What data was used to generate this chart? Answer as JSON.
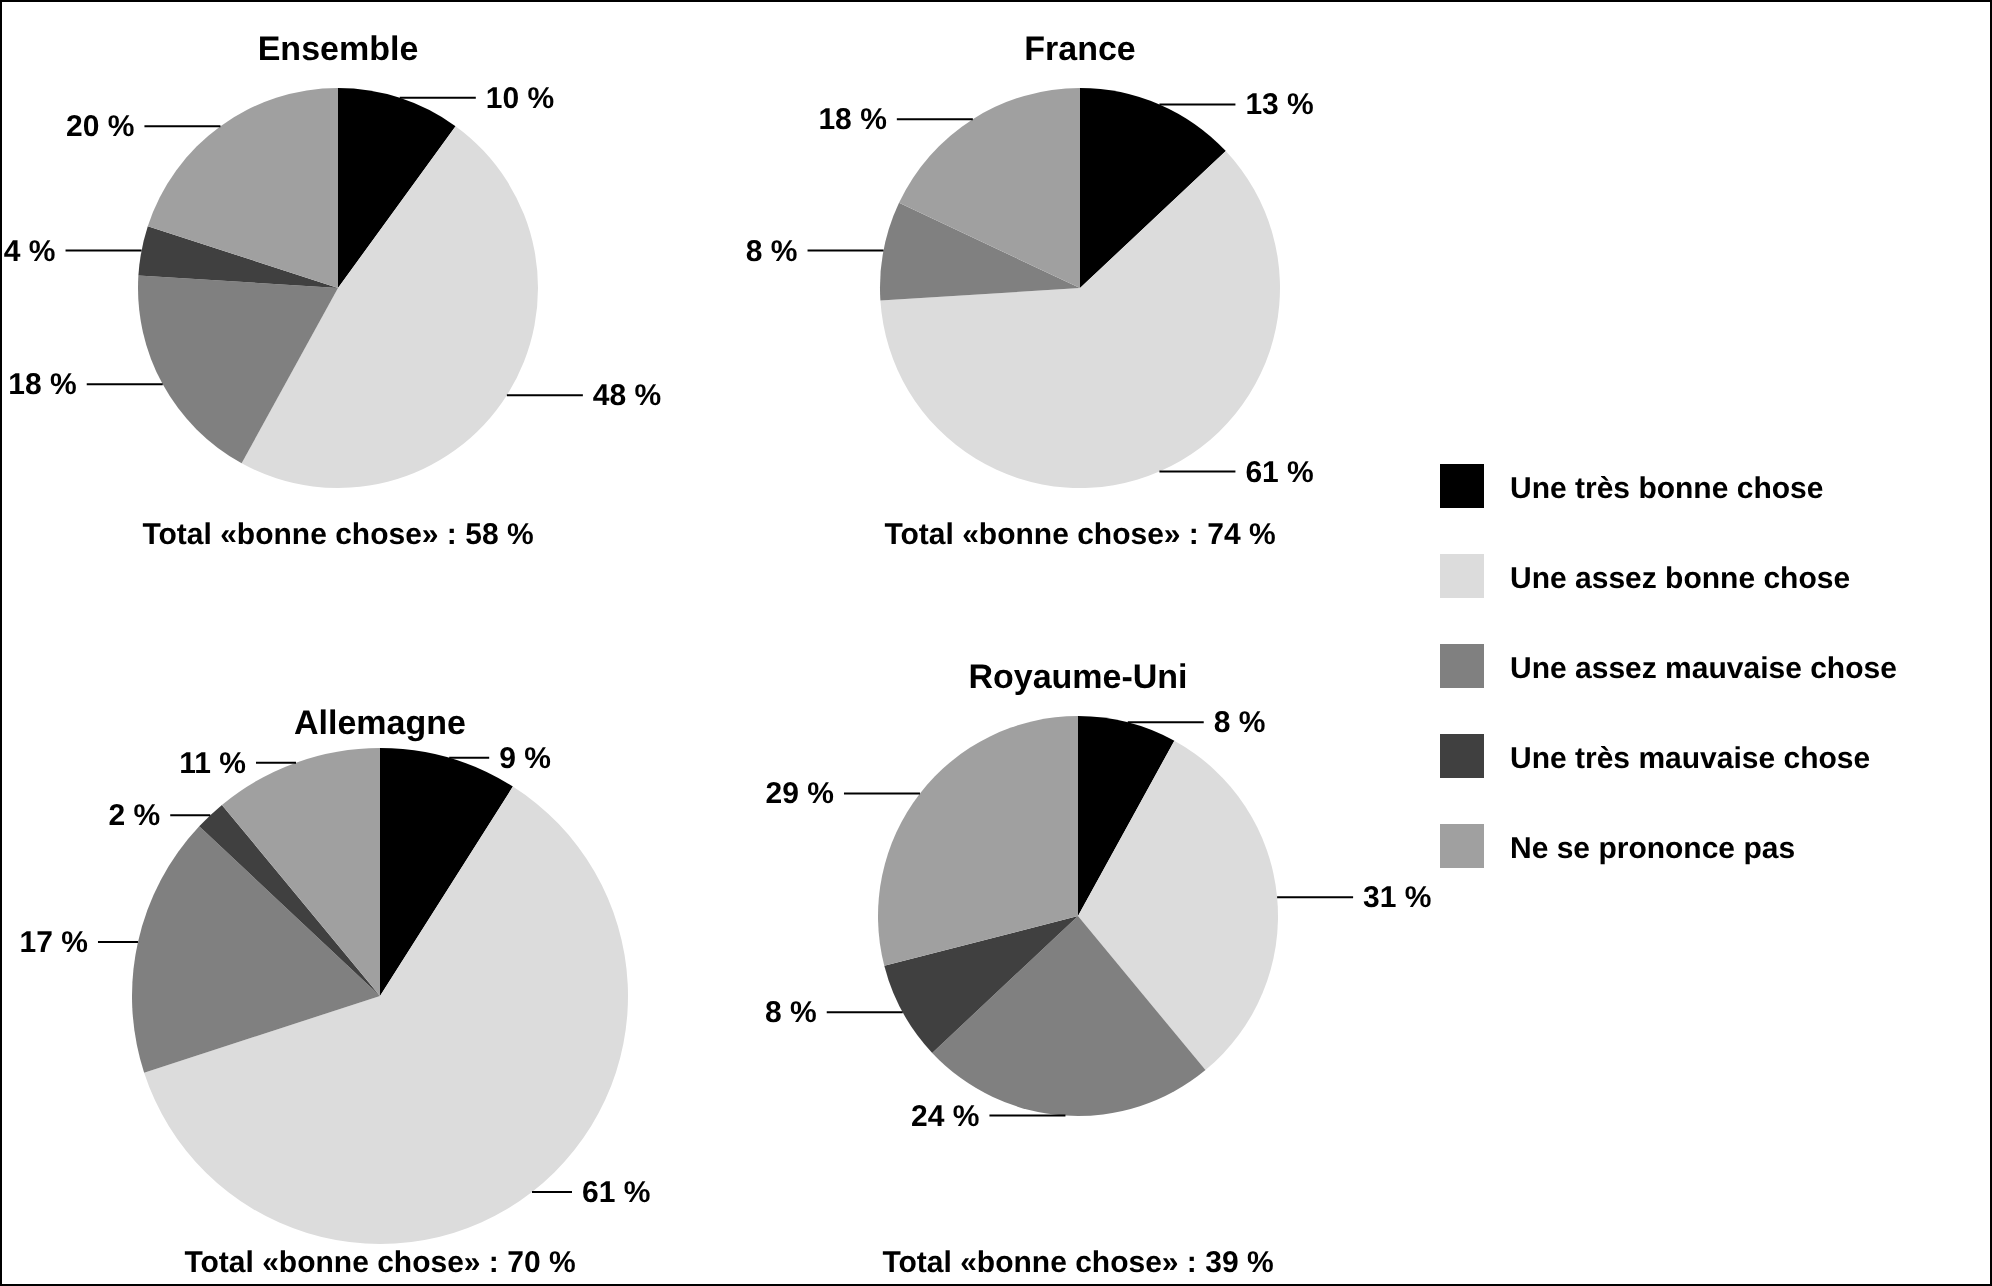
{
  "chart_data": [
    {
      "type": "pie",
      "title": "Ensemble",
      "categories": [
        "Une très bonne chose",
        "Une assez bonne chose",
        "Une assez mauvaise chose",
        "Une très mauvaise chose",
        "Ne se prononce pas"
      ],
      "values": [
        10,
        48,
        18,
        4,
        20
      ],
      "value_labels": [
        "10 %",
        "48 %",
        "18 %",
        "4 %",
        "20 %"
      ],
      "colors": [
        "#000000",
        "#dcdcdc",
        "#808080",
        "#404040",
        "#a0a0a0"
      ],
      "annotations": [
        "Total «bonne chose» : 58 %"
      ],
      "legend": "right"
    },
    {
      "type": "pie",
      "title": "France",
      "categories": [
        null,
        null,
        null,
        null,
        null
      ],
      "values": [
        13,
        61,
        8,
        0,
        18
      ],
      "value_labels": [
        "13 %",
        "61 %",
        "8 %",
        null,
        "18 %"
      ],
      "colors": [
        "#000000",
        "#dcdcdc",
        "#808080",
        "#404040",
        "#a0a0a0"
      ],
      "annotations": [
        "Total «bonne chose» : 74 %"
      ],
      "legend": false
    },
    {
      "type": "pie",
      "title": "Allemagne",
      "categories": [
        null,
        null,
        null,
        null,
        null
      ],
      "values": [
        9,
        61,
        17,
        2,
        11
      ],
      "value_labels": [
        "9 %",
        "61 %",
        "17 %",
        "2 %",
        "11 %"
      ],
      "colors": [
        "#000000",
        "#dcdcdc",
        "#808080",
        "#404040",
        "#a0a0a0"
      ],
      "annotations": [
        "Total «bonne chose» : 70 %"
      ],
      "legend": false
    },
    {
      "type": "pie",
      "title": "Royaume-Uni",
      "categories": [
        null,
        null,
        null,
        null,
        null
      ],
      "values": [
        8,
        31,
        24,
        8,
        29
      ],
      "value_labels": [
        "8 %",
        "31 %",
        "24 %",
        "8 %",
        "29 %"
      ],
      "colors": [
        "#000000",
        "#dcdcdc",
        "#808080",
        "#404040",
        "#a0a0a0"
      ],
      "annotations": [
        "Total «bonne chose» : 39 %"
      ],
      "legend": false
    }
  ]
}
